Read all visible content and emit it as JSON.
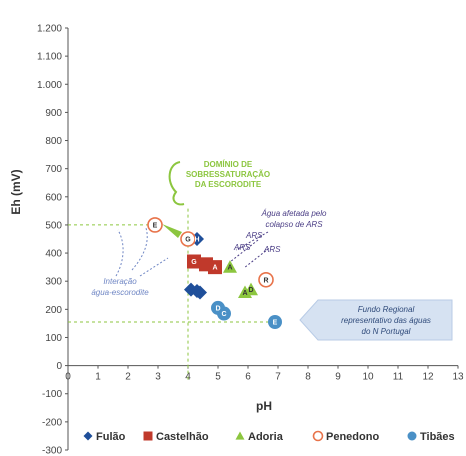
{
  "chart_data": {
    "type": "scatter",
    "ylabel": "Eh (mV)",
    "xlabel": "pH",
    "xlim": [
      0,
      13
    ],
    "ylim": [
      -300,
      1200
    ],
    "x_ticks": [
      0,
      1,
      2,
      3,
      4,
      5,
      6,
      7,
      8,
      9,
      10,
      11,
      12,
      13
    ],
    "y_ticks": [
      -300,
      -200,
      -100,
      0,
      100,
      200,
      300,
      400,
      500,
      600,
      700,
      800,
      900,
      1000,
      1100,
      1200
    ],
    "y_tick_labels": [
      "-300",
      "-200",
      "-100",
      "0",
      "100",
      "200",
      "300",
      "400",
      "500",
      "600",
      "700",
      "800",
      "900",
      "1.000",
      "1.100",
      "1.200"
    ],
    "grid": false,
    "legend_position": "bottom",
    "series": [
      {
        "name": "Fulão",
        "marker": "diamond",
        "color": "#1f4f9a",
        "points": [
          [
            4.1,
            270
          ],
          [
            4.3,
            265
          ],
          [
            4.4,
            260
          ],
          [
            4.3,
            450
          ]
        ]
      },
      {
        "name": "Castelhão",
        "marker": "square",
        "color": "#c0392b",
        "points": [
          [
            4.2,
            370
          ],
          [
            4.9,
            350
          ],
          [
            4.6,
            360
          ]
        ]
      },
      {
        "name": "Adoria",
        "marker": "triangle",
        "color": "#8cc63f",
        "points": [
          [
            5.9,
            260
          ],
          [
            6.1,
            270
          ],
          [
            5.4,
            350
          ]
        ]
      },
      {
        "name": "Penedono",
        "marker": "open-circle",
        "color": "#e8734a",
        "points": [
          [
            2.9,
            500
          ],
          [
            4.0,
            450
          ],
          [
            6.6,
            305
          ]
        ]
      },
      {
        "name": "Tibães",
        "marker": "circle",
        "color": "#4a90c6",
        "points": [
          [
            5.0,
            205
          ],
          [
            5.2,
            185
          ],
          [
            6.9,
            155
          ]
        ]
      }
    ],
    "point_labels": [
      {
        "x": 2.9,
        "y": 500,
        "text": "E",
        "color": "#333333"
      },
      {
        "x": 4.0,
        "y": 450,
        "text": "G",
        "color": "#333333"
      },
      {
        "x": 4.3,
        "y": 450,
        "text": "H",
        "color": "#ffffff"
      },
      {
        "x": 4.2,
        "y": 370,
        "text": "G",
        "color": "#ffffff"
      },
      {
        "x": 4.9,
        "y": 350,
        "text": "A",
        "color": "#ffffff"
      },
      {
        "x": 5.4,
        "y": 350,
        "text": "A",
        "color": "#333333"
      },
      {
        "x": 5.9,
        "y": 260,
        "text": "A",
        "color": "#333333"
      },
      {
        "x": 6.1,
        "y": 270,
        "text": "D",
        "color": "#333333"
      },
      {
        "x": 6.6,
        "y": 305,
        "text": "R",
        "color": "#333333"
      },
      {
        "x": 5.0,
        "y": 205,
        "text": "D",
        "color": "#ffffff"
      },
      {
        "x": 5.2,
        "y": 185,
        "text": "C",
        "color": "#ffffff"
      },
      {
        "x": 6.9,
        "y": 155,
        "text": "E",
        "color": "#ffffff"
      }
    ],
    "reference_lines": [
      {
        "orientation": "horizontal",
        "y": 500,
        "x_to": 2.9,
        "color": "#8cc63f"
      },
      {
        "orientation": "horizontal",
        "y": 155,
        "x_to": 6.9,
        "color": "#8cc63f"
      },
      {
        "orientation": "vertical",
        "x": 4.0,
        "y_from": -50,
        "y_to": 560,
        "color": "#8cc63f"
      }
    ],
    "annotations": {
      "scorodite_domain": [
        "DOMÍNIO DE",
        "SOBRESSATURAÇÃO",
        "DA ESCORODITE"
      ],
      "ars_collapse": [
        "Água afetada pelo",
        "colapso de ARS"
      ],
      "ars_markers": [
        "ARS",
        "ARS",
        "ARS"
      ],
      "interaction": [
        "Interação",
        "água-escorodite"
      ],
      "regional_background": [
        "Fundo Regional",
        "representativo das águas",
        "do N Portugal"
      ]
    }
  },
  "colors": {
    "axis": "#555555",
    "green": "#8cc63f",
    "regional_box": "#d6e2f2"
  }
}
